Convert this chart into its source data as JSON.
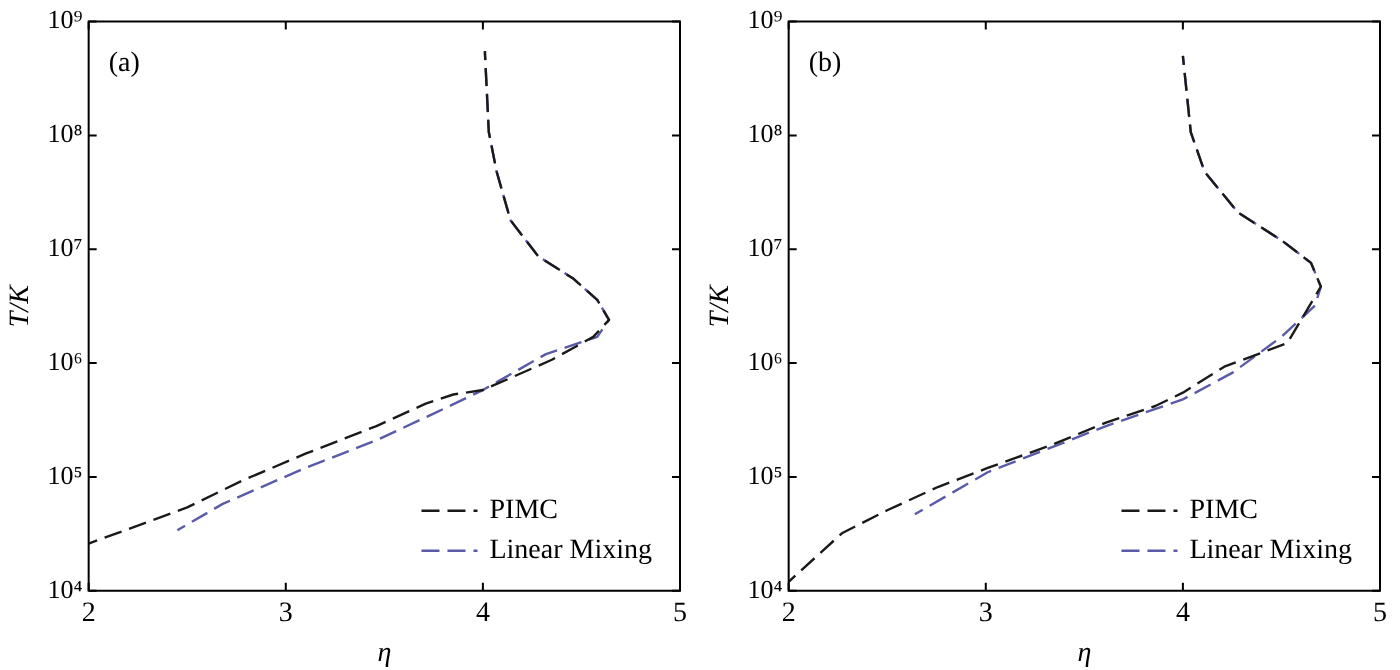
{
  "chart_data": [
    {
      "type": "line",
      "title": "(a)",
      "xlabel": "η",
      "ylabel": "T/K",
      "log": "y",
      "legend": "bottom right",
      "grid": false,
      "marker": "none",
      "xlim": [
        2,
        5
      ],
      "xticks": [
        2,
        3,
        4,
        5
      ],
      "ylim": [
        10000,
        1000000000
      ],
      "yticks": [
        {
          "value": 10000,
          "label": "10⁴"
        },
        {
          "value": 100000,
          "label": "10⁵"
        },
        {
          "value": 1000000,
          "label": "10⁶"
        },
        {
          "value": 10000000,
          "label": "10⁷"
        },
        {
          "value": 100000000,
          "label": "10⁸"
        },
        {
          "value": 1000000000,
          "label": "10⁹"
        }
      ],
      "series": [
        {
          "name": "PIMC",
          "color": "#1a1a1a",
          "line_style": "dashed",
          "x": [
            2.0,
            2.5,
            2.78,
            3.1,
            3.46,
            3.71,
            3.85,
            4.0,
            4.35,
            4.56,
            4.64,
            4.58,
            4.46,
            4.28,
            4.14,
            4.07,
            4.03,
            4.01
          ],
          "values": [
            26000,
            54000,
            93000,
            160000,
            280000,
            440000,
            530000,
            580000,
            1070000,
            1700000,
            2400000,
            3600000,
            5500000,
            8700000,
            18000000,
            48000000,
            107000000,
            550000000
          ]
        },
        {
          "name": "Linear Mixing",
          "color": "#5a5aa8",
          "line_style": "dashed",
          "x": [
            2.45,
            2.68,
            3.1,
            3.46,
            3.75,
            4.0,
            4.32,
            4.58,
            4.64,
            4.58,
            4.46,
            4.28,
            4.14,
            4.07,
            4.03,
            4.01
          ],
          "values": [
            34000,
            58000,
            120000,
            210000,
            360000,
            580000,
            1200000,
            1700000,
            2400000,
            3600000,
            5500000,
            8700000,
            18000000,
            48000000,
            107000000,
            550000000
          ]
        }
      ]
    },
    {
      "type": "line",
      "title": "(b)",
      "xlabel": "η",
      "ylabel": "T/K",
      "log": "y",
      "legend": "bottom right",
      "grid": false,
      "marker": "none",
      "xlim": [
        2,
        5
      ],
      "xticks": [
        2,
        3,
        4,
        5
      ],
      "ylim": [
        10000,
        1000000000
      ],
      "yticks": [
        {
          "value": 10000,
          "label": "10⁴"
        },
        {
          "value": 100000,
          "label": "10⁵"
        },
        {
          "value": 1000000,
          "label": "10⁶"
        },
        {
          "value": 10000000,
          "label": "10⁷"
        },
        {
          "value": 100000000,
          "label": "10⁸"
        },
        {
          "value": 1000000000,
          "label": "10⁹"
        }
      ],
      "series": [
        {
          "name": "PIMC",
          "color": "#1a1a1a",
          "line_style": "dashed",
          "x": [
            2.0,
            2.27,
            2.5,
            2.76,
            3.01,
            3.33,
            3.61,
            3.86,
            4.0,
            4.21,
            4.53,
            4.6,
            4.7,
            4.65,
            4.5,
            4.28,
            4.11,
            4.04,
            4.0
          ],
          "values": [
            12000,
            32000,
            51000,
            82000,
            120000,
            190000,
            300000,
            420000,
            550000,
            930000,
            1500000,
            2400000,
            4700000,
            7600000,
            12000000,
            21000000,
            48000000,
            107000000,
            500000000
          ]
        },
        {
          "name": "Linear Mixing",
          "color": "#5a5aa8",
          "line_style": "dashed",
          "x": [
            2.64,
            3.01,
            3.61,
            4.0,
            4.25,
            4.5,
            4.67,
            4.7,
            4.65,
            4.5,
            4.28,
            4.11,
            4.04,
            4.0
          ],
          "values": [
            47000,
            110000,
            280000,
            480000,
            820000,
            1700000,
            3200000,
            4700000,
            7600000,
            12000000,
            21000000,
            48000000,
            107000000,
            500000000
          ]
        }
      ]
    }
  ]
}
